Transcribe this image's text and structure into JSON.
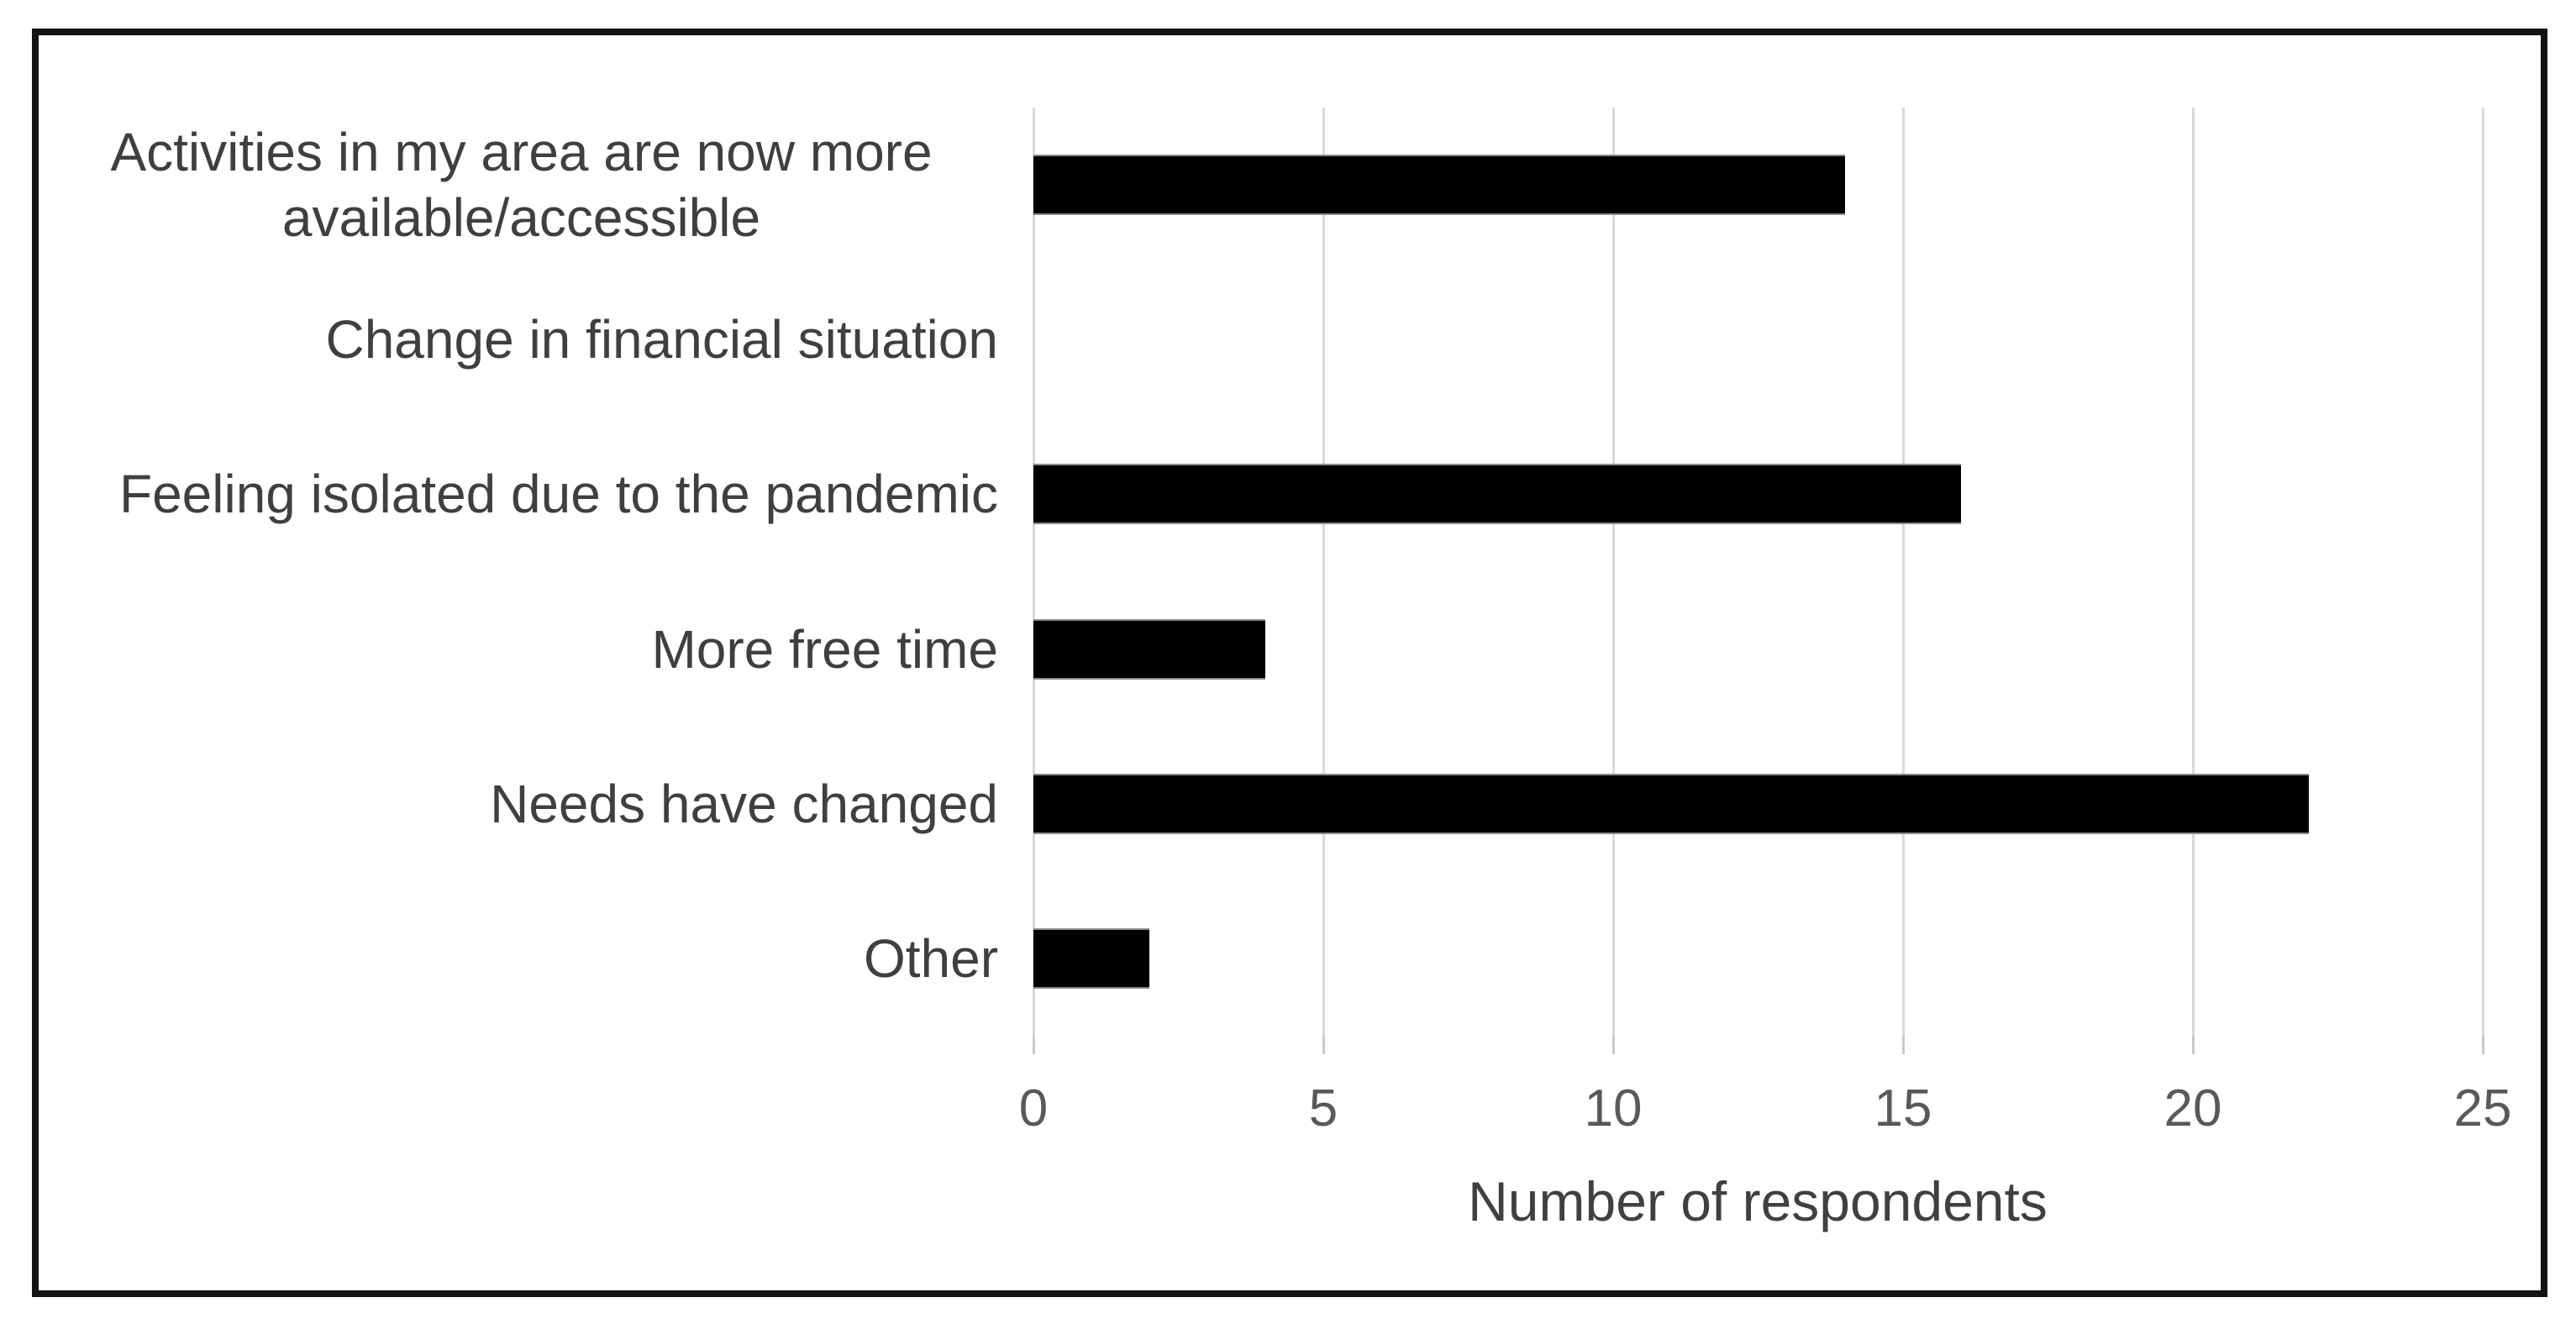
{
  "figure": {
    "background": "#ffffff",
    "frame_border_color": "#141414"
  },
  "chart_data": {
    "type": "bar",
    "orientation": "horizontal",
    "categories": [
      "Activities in my area are now more available/accessible",
      "Change in financial situation",
      "Feeling isolated due to the pandemic",
      "More free time",
      "Needs have changed",
      "Other"
    ],
    "values": [
      14,
      0,
      16,
      4,
      22,
      2
    ],
    "title": "",
    "xlabel": "Number of respondents",
    "ylabel": "",
    "xlim": [
      0,
      25
    ],
    "xticks": [
      0,
      5,
      10,
      15,
      20,
      25
    ],
    "grid": "vertical-gridlines-on",
    "legend": "none",
    "bar_color": "#000000",
    "gridline_color": "#d9d9d9",
    "category_label_color": "#3f3f3f",
    "tick_label_color": "#595959",
    "axis_title_color": "#404040"
  }
}
